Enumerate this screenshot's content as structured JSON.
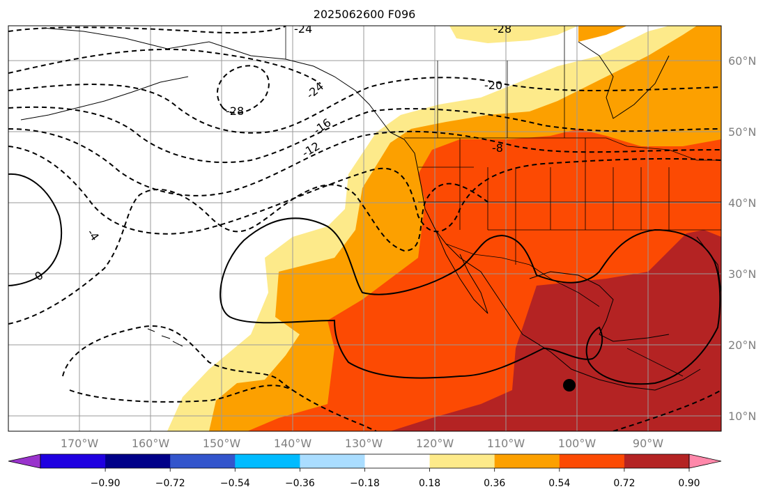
{
  "title": "2025062600 F096",
  "map": {
    "lat_labels": [
      "60°N",
      "50°N",
      "40°N",
      "30°N",
      "20°N",
      "10°N"
    ],
    "lon_labels": [
      "170°W",
      "160°W",
      "150°W",
      "140°W",
      "130°W",
      "120°W",
      "110°W",
      "100°W",
      "90°W"
    ],
    "contour_labels": {
      "neg24_top": "-24",
      "neg28_top": "-28",
      "neg28": "-28",
      "neg24": "-24",
      "neg20": "-20",
      "neg16": "-16",
      "neg12": "-12",
      "neg8": "-8",
      "neg4": "-4",
      "zero": "0"
    },
    "fill_colors": {
      "c018_036": "#fdea8a",
      "c036_054": "#fca000",
      "c054_072": "#fc4a03",
      "c072_090": "#b42323",
      "above": "#ff88aa"
    }
  },
  "colorbar": {
    "ticks": [
      "−0.90",
      "−0.72",
      "−0.54",
      "−0.36",
      "−0.18",
      "0.18",
      "0.36",
      "0.54",
      "0.72",
      "0.90"
    ],
    "colors": [
      "#9933cc",
      "#1f00e0",
      "#000088",
      "#3355cc",
      "#00bbff",
      "#aaddff",
      "#ffffff",
      "#fdea8a",
      "#fca000",
      "#fc4a03",
      "#b42323",
      "#ff88aa"
    ]
  }
}
